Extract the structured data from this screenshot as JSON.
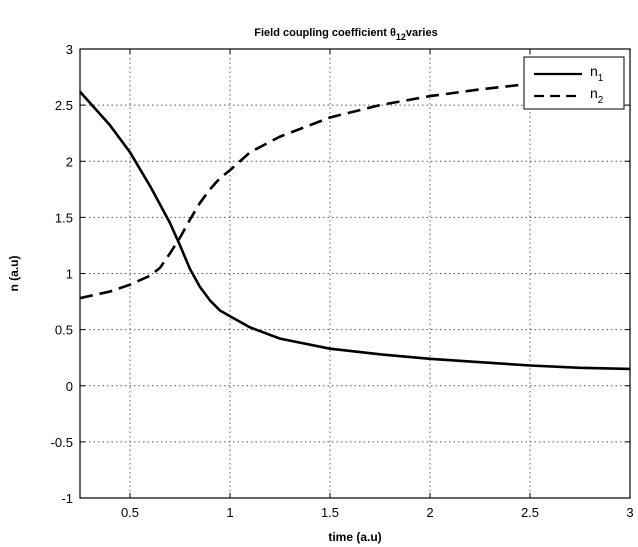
{
  "chart_data": {
    "type": "line",
    "title": "Field coupling coefficient θ",
    "title_subscript": "12",
    "title_suffix": "varies",
    "xlabel": "time (a.u)",
    "ylabel": "n (a.u)",
    "xlim": [
      0.25,
      3
    ],
    "ylim": [
      -1,
      3
    ],
    "xticks": [
      0.5,
      1,
      1.5,
      2,
      2.5,
      3
    ],
    "xtick_labels": [
      "0.5",
      "1",
      "1.5",
      "2",
      "2.5",
      "3"
    ],
    "yticks": [
      -1,
      -0.5,
      0,
      0.5,
      1,
      1.5,
      2,
      2.5,
      3
    ],
    "ytick_labels": [
      "-1",
      "-0.5",
      "0",
      "0.5",
      "1",
      "1.5",
      "2",
      "2.5",
      "3"
    ],
    "grid": true,
    "legend_position": "top-right",
    "series": [
      {
        "name": "n",
        "name_subscript": "1",
        "style": "solid",
        "color": "#000000",
        "x": [
          0.25,
          0.3,
          0.4,
          0.5,
          0.6,
          0.7,
          0.75,
          0.8,
          0.85,
          0.9,
          0.95,
          1.0,
          1.1,
          1.25,
          1.5,
          1.75,
          2.0,
          2.25,
          2.5,
          2.75,
          3.0
        ],
        "y": [
          2.62,
          2.52,
          2.32,
          2.08,
          1.78,
          1.45,
          1.25,
          1.04,
          0.88,
          0.76,
          0.67,
          0.62,
          0.52,
          0.42,
          0.33,
          0.28,
          0.24,
          0.21,
          0.18,
          0.16,
          0.15
        ]
      },
      {
        "name": "n",
        "name_subscript": "2",
        "style": "dashed",
        "color": "#000000",
        "x": [
          0.25,
          0.3,
          0.4,
          0.5,
          0.6,
          0.65,
          0.7,
          0.75,
          0.8,
          0.85,
          0.9,
          0.95,
          1.0,
          1.1,
          1.25,
          1.5,
          1.75,
          2.0,
          2.25,
          2.5,
          2.75
        ],
        "y": [
          0.78,
          0.8,
          0.84,
          0.9,
          0.98,
          1.05,
          1.18,
          1.32,
          1.48,
          1.63,
          1.75,
          1.85,
          1.92,
          2.08,
          2.22,
          2.39,
          2.5,
          2.58,
          2.64,
          2.69,
          2.72
        ]
      }
    ]
  }
}
